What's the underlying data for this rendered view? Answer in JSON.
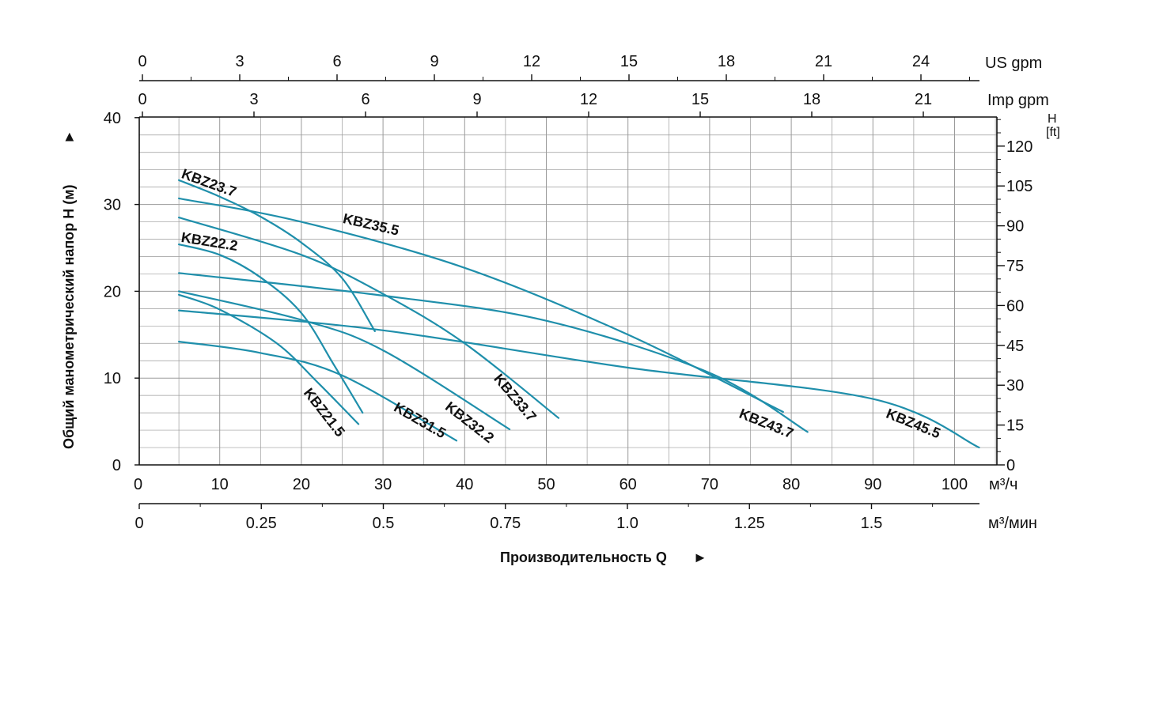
{
  "chart_data": {
    "type": "line",
    "title": "",
    "ylabel": "Общий манометрический напор Н (м)",
    "ylabel_arrow": "►",
    "xlabel": "Производительность Q",
    "xlabel_arrow": "►",
    "units": {
      "x_main": "м³/ч",
      "x_min": "м³/мин",
      "us_gpm": "US gpm",
      "imp_gpm": "Imp gpm",
      "ft_top": "H",
      "ft_bottom": "[ft]"
    },
    "axes": {
      "x_m3h": {
        "range": [
          0,
          105
        ],
        "ticks": [
          {
            "v": 0,
            "label": "0"
          },
          {
            "v": 10,
            "label": "10"
          },
          {
            "v": 20,
            "label": "20"
          },
          {
            "v": 30,
            "label": "30"
          },
          {
            "v": 40,
            "label": "40"
          },
          {
            "v": 50,
            "label": "50"
          },
          {
            "v": 60,
            "label": "60"
          },
          {
            "v": 70,
            "label": "70"
          },
          {
            "v": 80,
            "label": "80"
          },
          {
            "v": 90,
            "label": "90"
          },
          {
            "v": 100,
            "label": "100"
          }
        ]
      },
      "x_m3min": {
        "ticks": [
          {
            "v": 0,
            "label": "0"
          },
          {
            "v": 0.25,
            "label": "0.25"
          },
          {
            "v": 0.5,
            "label": "0.5"
          },
          {
            "v": 0.75,
            "label": "0.75"
          },
          {
            "v": 1.0,
            "label": "1.0"
          },
          {
            "v": 1.25,
            "label": "1.25"
          },
          {
            "v": 1.5,
            "label": "1.5"
          }
        ]
      },
      "us_gpm": {
        "ticks": [
          {
            "v": 0,
            "label": "0"
          },
          {
            "v": 3,
            "label": "3"
          },
          {
            "v": 6,
            "label": "6"
          },
          {
            "v": 9,
            "label": "9"
          },
          {
            "v": 12,
            "label": "12"
          },
          {
            "v": 15,
            "label": "15"
          },
          {
            "v": 18,
            "label": "18"
          },
          {
            "v": 21,
            "label": "21"
          },
          {
            "v": 24,
            "label": "24"
          }
        ]
      },
      "imp_gpm": {
        "ticks": [
          {
            "v": 0,
            "label": "0"
          },
          {
            "v": 3,
            "label": "3"
          },
          {
            "v": 6,
            "label": "6"
          },
          {
            "v": 9,
            "label": "9"
          },
          {
            "v": 12,
            "label": "12"
          },
          {
            "v": 15,
            "label": "15"
          },
          {
            "v": 18,
            "label": "18"
          },
          {
            "v": 21,
            "label": "21"
          }
        ]
      },
      "y_m": {
        "range": [
          0,
          40
        ],
        "ticks": [
          {
            "v": 0,
            "label": "0"
          },
          {
            "v": 10,
            "label": "10"
          },
          {
            "v": 20,
            "label": "20"
          },
          {
            "v": 30,
            "label": "30"
          },
          {
            "v": 40,
            "label": "40"
          }
        ]
      },
      "y_ft": {
        "ticks": [
          {
            "v": 0,
            "label": "0"
          },
          {
            "v": 15,
            "label": "15"
          },
          {
            "v": 30,
            "label": "30"
          },
          {
            "v": 45,
            "label": "45"
          },
          {
            "v": 60,
            "label": "60"
          },
          {
            "v": 75,
            "label": "75"
          },
          {
            "v": 90,
            "label": "90"
          },
          {
            "v": 105,
            "label": "105"
          },
          {
            "v": 120,
            "label": "120"
          }
        ]
      }
    },
    "grid": true,
    "colors": {
      "curve": "#1f8fab",
      "grid": "#9a9a9a",
      "axis": "#111111"
    },
    "series": [
      {
        "name": "KBZ23.7",
        "points": [
          [
            5,
            32.8
          ],
          [
            10,
            30.9
          ],
          [
            15,
            28.6
          ],
          [
            20,
            25.6
          ],
          [
            25,
            21.5
          ],
          [
            29,
            15.4
          ]
        ],
        "label_at": [
          5.2,
          33.1
        ],
        "label_angle": 20
      },
      {
        "name": "KBZ35.5",
        "points": [
          [
            5,
            30.7
          ],
          [
            20,
            28.0
          ],
          [
            40,
            22.7
          ],
          [
            60,
            15.0
          ],
          [
            79,
            6.1
          ]
        ],
        "label_at": [
          25,
          27.9
        ],
        "label_angle": 13
      },
      {
        "name": "KBZ22.2",
        "points": [
          [
            5,
            25.4
          ],
          [
            10,
            24.2
          ],
          [
            15,
            21.6
          ],
          [
            20,
            17.5
          ],
          [
            24,
            11.5
          ],
          [
            27.5,
            6.0
          ]
        ],
        "label_at": [
          5.2,
          25.7
        ],
        "label_angle": 9
      },
      {
        "name": "KBZ33.7",
        "points": [
          [
            5,
            28.5
          ],
          [
            20,
            24.2
          ],
          [
            30,
            19.7
          ],
          [
            40,
            14.0
          ],
          [
            51.5,
            5.4
          ]
        ],
        "label_at": [
          43.5,
          9.9
        ],
        "label_angle": 50
      },
      {
        "name": "KBZ43.7",
        "points": [
          [
            5,
            22.1
          ],
          [
            30,
            19.5
          ],
          [
            50,
            16.6
          ],
          [
            70,
            10.6
          ],
          [
            82,
            3.8
          ]
        ],
        "label_at": [
          73.5,
          5.5
        ],
        "label_angle": 22
      },
      {
        "name": "KBZ45.5",
        "points": [
          [
            5,
            17.8
          ],
          [
            30,
            15.5
          ],
          [
            60,
            11.2
          ],
          [
            90,
            7.6
          ],
          [
            103,
            2.0
          ]
        ],
        "label_at": [
          91.5,
          5.5
        ],
        "label_angle": 22
      },
      {
        "name": "KBZ32.2",
        "points": [
          [
            5,
            20.0
          ],
          [
            20,
            16.7
          ],
          [
            30,
            13.2
          ],
          [
            45.5,
            4.1
          ]
        ],
        "label_at": [
          37.5,
          6.5
        ],
        "label_angle": 38
      },
      {
        "name": "KBZ21.5",
        "points": [
          [
            5,
            19.6
          ],
          [
            10,
            17.9
          ],
          [
            17,
            14.0
          ],
          [
            22,
            9.5
          ],
          [
            27,
            4.7
          ]
        ],
        "label_at": [
          20.2,
          8.3
        ],
        "label_angle": 52
      },
      {
        "name": "KBZ31.5",
        "points": [
          [
            5,
            14.2
          ],
          [
            15,
            12.9
          ],
          [
            25,
            10.3
          ],
          [
            39,
            2.8
          ]
        ],
        "label_at": [
          31.2,
          6.3
        ],
        "label_angle": 30
      }
    ]
  }
}
